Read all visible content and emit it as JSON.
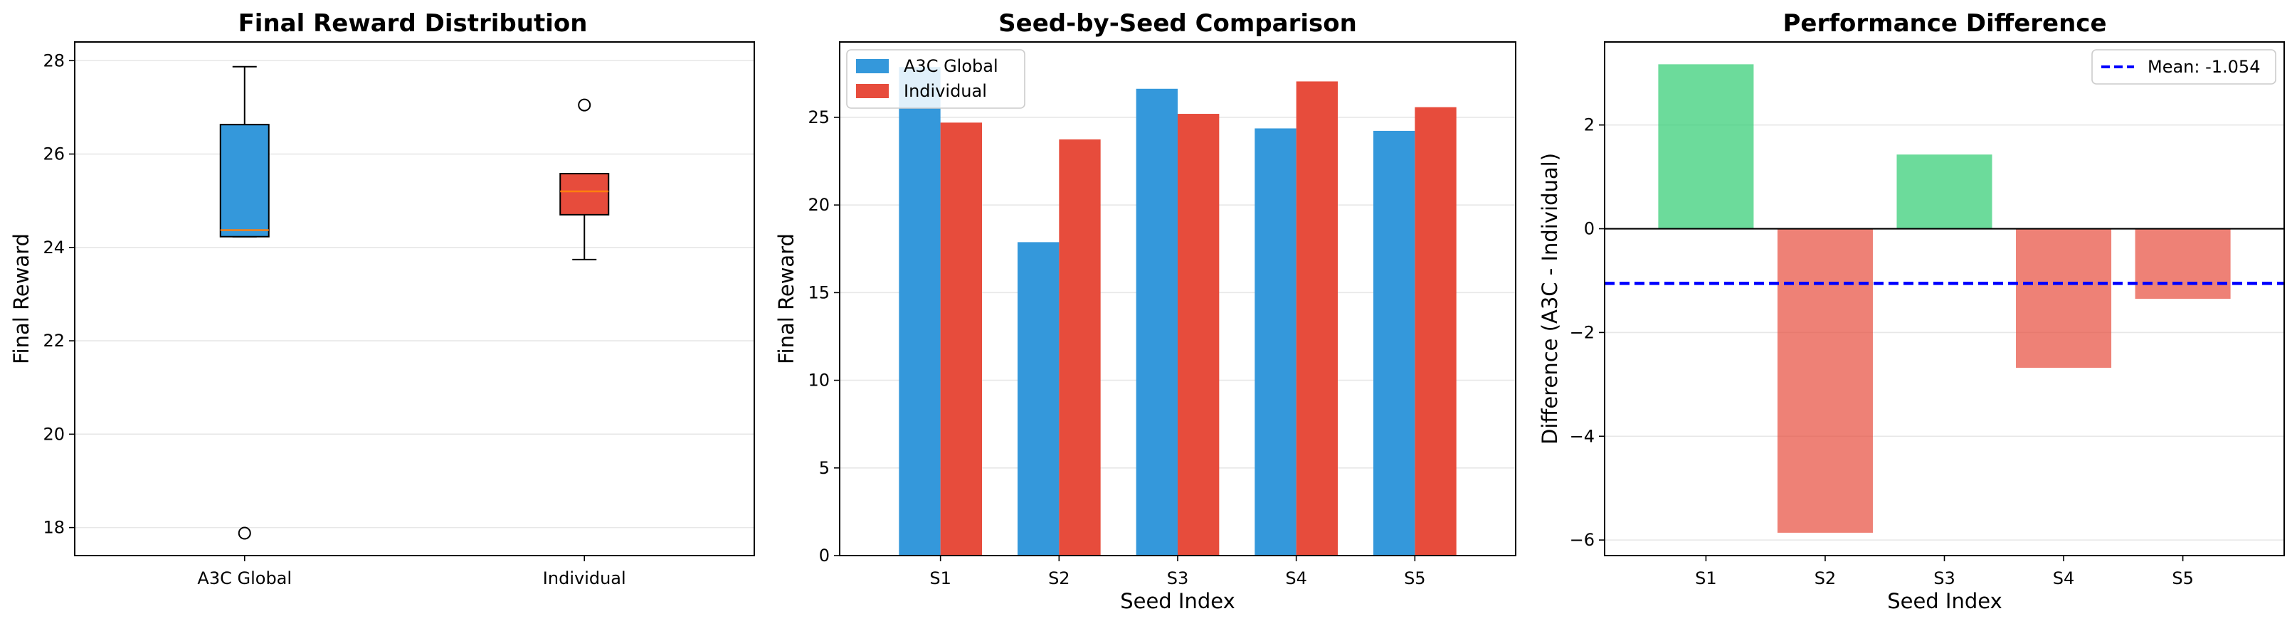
{
  "colors": {
    "a3c": "#3498db",
    "individual": "#e74c3c",
    "positive": "#2ecc71",
    "negative": "#e74c3c",
    "median": "#ff7f0e",
    "mean_line": "#0000ff"
  },
  "chart_data": [
    {
      "type": "box",
      "title": "Final Reward Distribution",
      "xlabel": "",
      "ylabel": "Final Reward",
      "ylim": [
        17.4,
        28.4
      ],
      "yticks": [
        18,
        20,
        22,
        24,
        26,
        28
      ],
      "grid": "y",
      "categories": [
        "A3C Global",
        "Individual"
      ],
      "boxes": [
        {
          "name": "A3C Global",
          "q1": 24.23,
          "median": 24.37,
          "q3": 26.63,
          "whisker_low": 24.23,
          "whisker_high": 27.87,
          "outliers": [
            17.88
          ]
        },
        {
          "name": "Individual",
          "q1": 24.7,
          "median": 25.2,
          "q3": 25.58,
          "whisker_low": 23.74,
          "whisker_high": 25.58,
          "outliers": [
            27.05
          ]
        }
      ]
    },
    {
      "type": "bar",
      "title": "Seed-by-Seed Comparison",
      "xlabel": "Seed Index",
      "ylabel": "Final Reward",
      "ylim": [
        0,
        29.3
      ],
      "yticks": [
        0,
        5,
        10,
        15,
        20,
        25
      ],
      "grid": "y",
      "legend_position": "top-left",
      "categories": [
        "S1",
        "S2",
        "S3",
        "S4",
        "S5"
      ],
      "series": [
        {
          "name": "A3C Global",
          "values": [
            27.87,
            17.88,
            26.63,
            24.37,
            24.23
          ]
        },
        {
          "name": "Individual",
          "values": [
            24.7,
            23.74,
            25.2,
            27.05,
            25.58
          ]
        }
      ]
    },
    {
      "type": "bar",
      "title": "Performance Difference",
      "xlabel": "Seed Index",
      "ylabel": "Difference (A3C - Individual)",
      "ylim": [
        -6.3,
        3.6
      ],
      "yticks": [
        -6,
        -4,
        -2,
        0,
        2
      ],
      "grid": "y",
      "legend_position": "top-right",
      "categories": [
        "S1",
        "S2",
        "S3",
        "S4",
        "S5"
      ],
      "values": [
        3.17,
        -5.86,
        1.43,
        -2.68,
        -1.35
      ],
      "mean": {
        "value": -1.054,
        "label": "Mean: -1.054"
      }
    }
  ]
}
